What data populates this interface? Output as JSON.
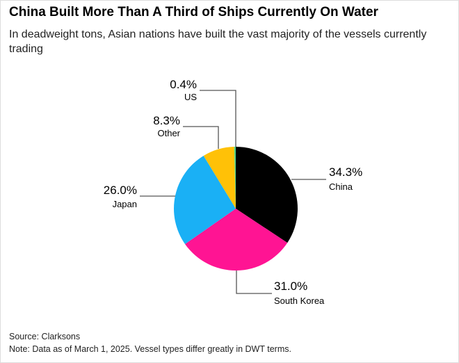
{
  "title": "China Built More Than A Third of Ships Currently On Water",
  "subtitle": "In deadweight tons, Asian nations have built the vast majority of the vessels currently trading",
  "source": "Source: Clarksons",
  "note": "Note: Data as of March 1, 2025. Vessel types differ greatly in DWT terms.",
  "chart_data": {
    "type": "pie",
    "title": "China Built More Than A Third of Ships Currently On Water",
    "slices": [
      {
        "label": "China",
        "value": 34.3,
        "text": "34.3%",
        "color": "#000000"
      },
      {
        "label": "South Korea",
        "value": 31.0,
        "text": "31.0%",
        "color": "#ff1493"
      },
      {
        "label": "Japan",
        "value": 26.0,
        "text": "26.0%",
        "color": "#1ab0f5"
      },
      {
        "label": "Other",
        "value": 8.3,
        "text": "8.3%",
        "color": "#ffc107"
      },
      {
        "label": "US",
        "value": 0.4,
        "text": "0.4%",
        "color": "#4dd68c"
      }
    ]
  }
}
